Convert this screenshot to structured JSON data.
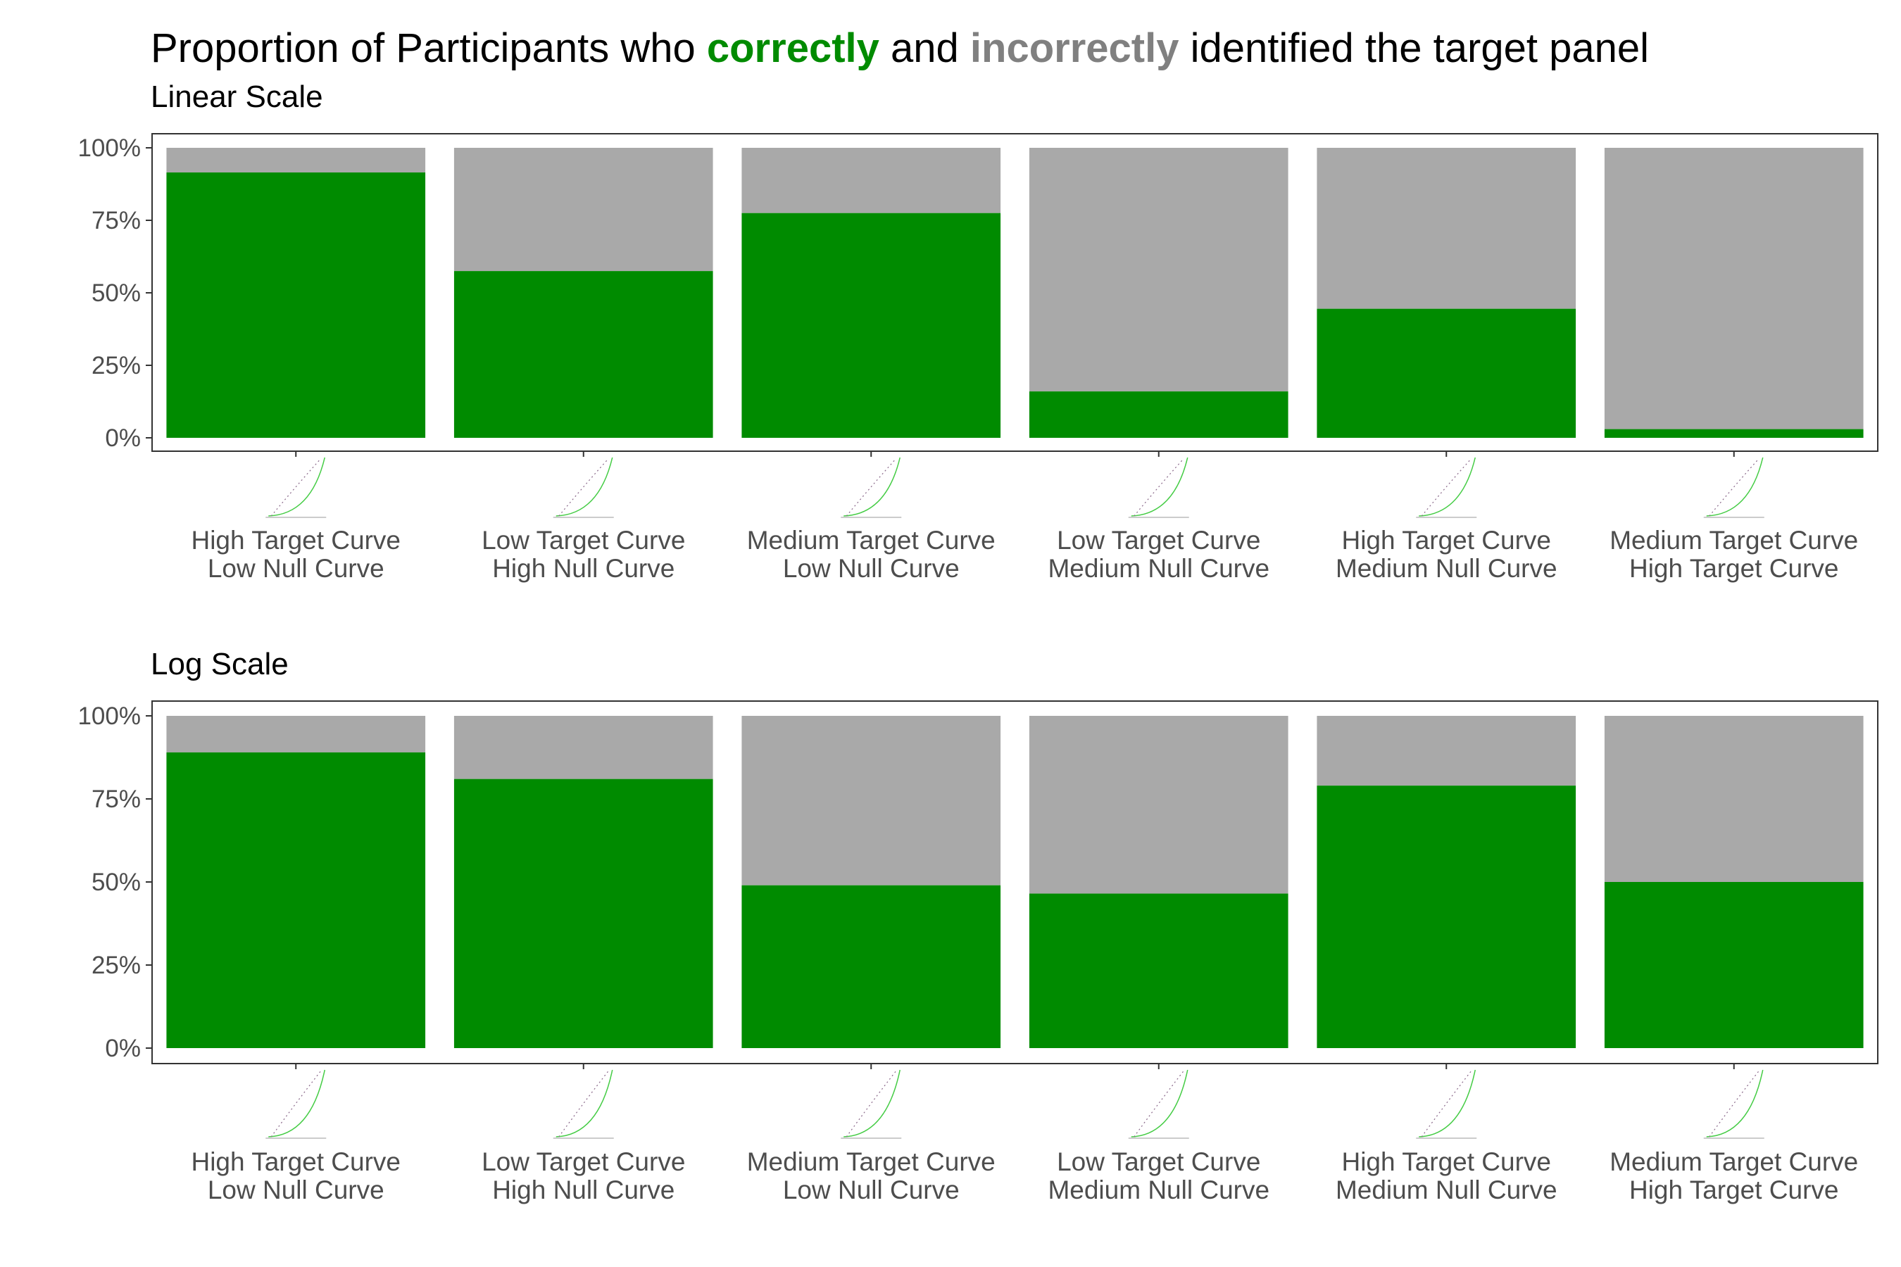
{
  "title": {
    "prefix": "Proportion of Participants who ",
    "correct_word": "correctly",
    "middle": " and ",
    "incorrect_word": "incorrectly",
    "suffix": " identified the target panel"
  },
  "colors": {
    "correct": "#008B00",
    "incorrect": "#A9A9A9",
    "title_correct": "#008B00",
    "title_incorrect": "#808080",
    "panel_border": "#333333",
    "tick_text": "#4d4d4d"
  },
  "chart_data": [
    {
      "type": "bar",
      "stacked": true,
      "subtitle": "Linear Scale",
      "categories": [
        [
          "High Target Curve",
          "Low Null Curve"
        ],
        [
          "Low Target Curve",
          "High Null Curve"
        ],
        [
          "Medium Target Curve",
          "Low Null Curve"
        ],
        [
          "Low Target Curve",
          "Medium Null Curve"
        ],
        [
          "High Target Curve",
          "Medium Null Curve"
        ],
        [
          "Medium Target Curve",
          "High Target Curve"
        ]
      ],
      "series": [
        {
          "key": "correct",
          "values": [
            0.915,
            0.575,
            0.775,
            0.16,
            0.445,
            0.03
          ]
        },
        {
          "key": "incorrect",
          "values": [
            0.085,
            0.425,
            0.225,
            0.84,
            0.555,
            0.97
          ]
        }
      ],
      "yticks": [
        "0%",
        "25%",
        "50%",
        "75%",
        "100%"
      ],
      "ylim": [
        0,
        1
      ],
      "grid": false,
      "legend": "none"
    },
    {
      "type": "bar",
      "stacked": true,
      "subtitle": "Log Scale",
      "categories": [
        [
          "High Target Curve",
          "Low Null Curve"
        ],
        [
          "Low Target Curve",
          "High Null Curve"
        ],
        [
          "Medium Target Curve",
          "Low Null Curve"
        ],
        [
          "Low Target Curve",
          "Medium Null Curve"
        ],
        [
          "High Target Curve",
          "Medium Null Curve"
        ],
        [
          "Medium Target Curve",
          "High Target Curve"
        ]
      ],
      "series": [
        {
          "key": "correct",
          "values": [
            0.89,
            0.81,
            0.49,
            0.465,
            0.79,
            0.5
          ]
        },
        {
          "key": "incorrect",
          "values": [
            0.11,
            0.19,
            0.51,
            0.535,
            0.21,
            0.5
          ]
        }
      ],
      "yticks": [
        "0%",
        "25%",
        "50%",
        "75%",
        "100%"
      ],
      "ylim": [
        0,
        1
      ],
      "grid": false,
      "legend": "none"
    }
  ]
}
